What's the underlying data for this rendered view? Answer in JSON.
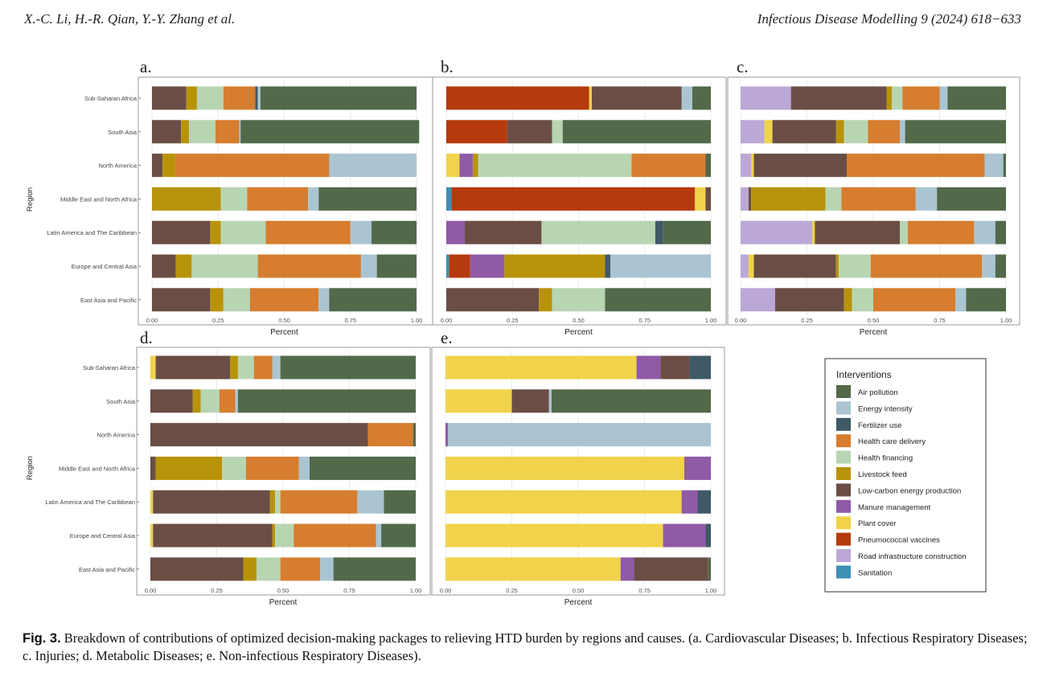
{
  "header": {
    "authors": "X.-C. Li, H.-R. Qian, Y.-Y. Zhang et al.",
    "journal": "Infectious Disease Modelling 9 (2024) 618−633"
  },
  "caption": {
    "label": "Fig. 3.",
    "text": "Breakdown of contributions of optimized decision-making packages to relieving HTD burden by regions and causes. (a. Cardiovascular Diseases; b. Infectious Respiratory Diseases; c. Injuries; d. Metabolic Diseases; e. Non-infectious Respiratory Diseases)."
  },
  "legend": {
    "title": "Interventions",
    "items": [
      {
        "label": "Air pollution",
        "color": "#52694a"
      },
      {
        "label": "Energy intensity",
        "color": "#aac5d1"
      },
      {
        "label": "Fertilizer use",
        "color": "#3f5966"
      },
      {
        "label": "Health care delivery",
        "color": "#d67d2f"
      },
      {
        "label": "Health financing",
        "color": "#b8d5b2"
      },
      {
        "label": "Livestock feed",
        "color": "#b8930a"
      },
      {
        "label": "Low-carbon energy production",
        "color": "#6a4e45"
      },
      {
        "label": "Manure management",
        "color": "#8f5aa6"
      },
      {
        "label": "Plant cover",
        "color": "#f0d34a"
      },
      {
        "label": "Pneumococcal vaccines",
        "color": "#b53a0e"
      },
      {
        "label": "Road infrastructure construction",
        "color": "#bba8d6"
      },
      {
        "label": "Sanitation",
        "color": "#3d8fb4"
      }
    ]
  },
  "chart_data": [
    {
      "type": "bar",
      "panel": "a.",
      "orientation": "horizontal",
      "stacked": true,
      "xlabel": "Percent",
      "ylabel": "Region",
      "xticks": [
        "0.00",
        "0.25",
        "0.50",
        "0.75",
        "1.00"
      ],
      "xlim": [
        0,
        1
      ],
      "categories": [
        "Sub-Saharan Africa",
        "South Asia",
        "North America",
        "Middle East and North Africa",
        "Latin America and The Caribbean",
        "Europe and Central Asia",
        "East Asia and Pacific"
      ],
      "rows": [
        [
          [
            "Low-carbon energy production",
            0.13
          ],
          [
            "Livestock feed",
            0.04
          ],
          [
            "Health financing",
            0.1
          ],
          [
            "Health care delivery",
            0.12
          ],
          [
            "Fertilizer use",
            0.01
          ],
          [
            "Energy intensity",
            0.01
          ],
          [
            "Air pollution",
            0.59
          ]
        ],
        [
          [
            "Low-carbon energy production",
            0.11
          ],
          [
            "Livestock feed",
            0.03
          ],
          [
            "Health financing",
            0.1
          ],
          [
            "Health care delivery",
            0.09
          ],
          [
            "Energy intensity",
            0.005
          ],
          [
            "Air pollution",
            0.675
          ]
        ],
        [
          [
            "Low-carbon energy production",
            0.04
          ],
          [
            "Livestock feed",
            0.05
          ],
          [
            "Health care delivery",
            0.58
          ],
          [
            "Energy intensity",
            0.33
          ]
        ],
        [
          [
            "Livestock feed",
            0.26
          ],
          [
            "Health financing",
            0.1
          ],
          [
            "Health care delivery",
            0.23
          ],
          [
            "Energy intensity",
            0.04
          ],
          [
            "Air pollution",
            0.37
          ]
        ],
        [
          [
            "Low-carbon energy production",
            0.22
          ],
          [
            "Livestock feed",
            0.04
          ],
          [
            "Health financing",
            0.17
          ],
          [
            "Health care delivery",
            0.32
          ],
          [
            "Energy intensity",
            0.08
          ],
          [
            "Air pollution",
            0.17
          ]
        ],
        [
          [
            "Low-carbon energy production",
            0.09
          ],
          [
            "Livestock feed",
            0.06
          ],
          [
            "Health financing",
            0.25
          ],
          [
            "Health care delivery",
            0.39
          ],
          [
            "Energy intensity",
            0.06
          ],
          [
            "Air pollution",
            0.15
          ]
        ],
        [
          [
            "Low-carbon energy production",
            0.22
          ],
          [
            "Livestock feed",
            0.05
          ],
          [
            "Health financing",
            0.1
          ],
          [
            "Health care delivery",
            0.26
          ],
          [
            "Energy intensity",
            0.04
          ],
          [
            "Air pollution",
            0.33
          ]
        ]
      ]
    },
    {
      "type": "bar",
      "panel": "b.",
      "orientation": "horizontal",
      "stacked": true,
      "xlabel": "Percent",
      "ylabel": "",
      "xticks": [
        "0.00",
        "0.25",
        "0.50",
        "0.75",
        "1.00"
      ],
      "xlim": [
        0,
        1
      ],
      "categories": [
        "Sub-Saharan Africa",
        "South Asia",
        "North America",
        "Middle East and North Africa",
        "Latin America and The Caribbean",
        "Europe and Central Asia",
        "East Asia and Pacific"
      ],
      "rows": [
        [
          [
            "Pneumococcal vaccines",
            0.54
          ],
          [
            "Plant cover",
            0.01
          ],
          [
            "Low-carbon energy production",
            0.34
          ],
          [
            "Energy intensity",
            0.04
          ],
          [
            "Air pollution",
            0.07
          ]
        ],
        [
          [
            "Pneumococcal vaccines",
            0.23
          ],
          [
            "Low-carbon energy production",
            0.17
          ],
          [
            "Health financing",
            0.04
          ],
          [
            "Air pollution",
            0.56
          ]
        ],
        [
          [
            "Plant cover",
            0.05
          ],
          [
            "Manure management",
            0.05
          ],
          [
            "Livestock feed",
            0.02
          ],
          [
            "Health financing",
            0.58
          ],
          [
            "Health care delivery",
            0.28
          ],
          [
            "Air pollution",
            0.02
          ]
        ],
        [
          [
            "Sanitation",
            0.02
          ],
          [
            "Pneumococcal vaccines",
            0.92
          ],
          [
            "Plant cover",
            0.04
          ],
          [
            "Low-carbon energy production",
            0.02
          ]
        ],
        [
          [
            "Manure management",
            0.07
          ],
          [
            "Low-carbon energy production",
            0.29
          ],
          [
            "Health financing",
            0.43
          ],
          [
            "Fertilizer use",
            0.03
          ],
          [
            "Air pollution",
            0.18
          ]
        ],
        [
          [
            "Sanitation",
            0.01
          ],
          [
            "Pneumococcal vaccines",
            0.08
          ],
          [
            "Manure management",
            0.13
          ],
          [
            "Livestock feed",
            0.38
          ],
          [
            "Fertilizer use",
            0.02
          ],
          [
            "Energy intensity",
            0.38
          ]
        ],
        [
          [
            "Low-carbon energy production",
            0.35
          ],
          [
            "Livestock feed",
            0.05
          ],
          [
            "Health financing",
            0.2
          ],
          [
            "Air pollution",
            0.4
          ]
        ]
      ]
    },
    {
      "type": "bar",
      "panel": "c.",
      "orientation": "horizontal",
      "stacked": true,
      "xlabel": "Percent",
      "ylabel": "",
      "xticks": [
        "0.00",
        "0.25",
        "0.50",
        "0.75",
        "1.00"
      ],
      "xlim": [
        0,
        1
      ],
      "categories": [
        "Sub-Saharan Africa",
        "South Asia",
        "North America",
        "Middle East and North Africa",
        "Latin America and The Caribbean",
        "Europe and Central Asia",
        "East Asia and Pacific"
      ],
      "rows": [
        [
          [
            "Road infrastructure construction",
            0.19
          ],
          [
            "Low-carbon energy production",
            0.36
          ],
          [
            "Livestock feed",
            0.02
          ],
          [
            "Health financing",
            0.04
          ],
          [
            "Health care delivery",
            0.14
          ],
          [
            "Energy intensity",
            0.03
          ],
          [
            "Air pollution",
            0.22
          ]
        ],
        [
          [
            "Road infrastructure construction",
            0.09
          ],
          [
            "Plant cover",
            0.03
          ],
          [
            "Low-carbon energy production",
            0.24
          ],
          [
            "Livestock feed",
            0.03
          ],
          [
            "Health financing",
            0.09
          ],
          [
            "Health care delivery",
            0.12
          ],
          [
            "Energy intensity",
            0.02
          ],
          [
            "Air pollution",
            0.38
          ]
        ],
        [
          [
            "Road infrastructure construction",
            0.04
          ],
          [
            "Plant cover",
            0.01
          ],
          [
            "Low-carbon energy production",
            0.35
          ],
          [
            "Health care delivery",
            0.52
          ],
          [
            "Energy intensity",
            0.07
          ],
          [
            "Air pollution",
            0.01
          ]
        ],
        [
          [
            "Road infrastructure construction",
            0.03
          ],
          [
            "Low-carbon energy production",
            0.01
          ],
          [
            "Livestock feed",
            0.28
          ],
          [
            "Health financing",
            0.06
          ],
          [
            "Health care delivery",
            0.28
          ],
          [
            "Energy intensity",
            0.08
          ],
          [
            "Air pollution",
            0.26
          ]
        ],
        [
          [
            "Road infrastructure construction",
            0.27
          ],
          [
            "Plant cover",
            0.01
          ],
          [
            "Low-carbon energy production",
            0.32
          ],
          [
            "Health financing",
            0.03
          ],
          [
            "Health care delivery",
            0.25
          ],
          [
            "Energy intensity",
            0.08
          ],
          [
            "Air pollution",
            0.04
          ]
        ],
        [
          [
            "Road infrastructure construction",
            0.03
          ],
          [
            "Plant cover",
            0.02
          ],
          [
            "Low-carbon energy production",
            0.31
          ],
          [
            "Livestock feed",
            0.01
          ],
          [
            "Health financing",
            0.12
          ],
          [
            "Health care delivery",
            0.42
          ],
          [
            "Energy intensity",
            0.05
          ],
          [
            "Air pollution",
            0.04
          ]
        ],
        [
          [
            "Road infrastructure construction",
            0.13
          ],
          [
            "Low-carbon energy production",
            0.26
          ],
          [
            "Livestock feed",
            0.03
          ],
          [
            "Health financing",
            0.08
          ],
          [
            "Health care delivery",
            0.31
          ],
          [
            "Energy intensity",
            0.04
          ],
          [
            "Air pollution",
            0.15
          ]
        ]
      ]
    },
    {
      "type": "bar",
      "panel": "d.",
      "orientation": "horizontal",
      "stacked": true,
      "xlabel": "Percent",
      "ylabel": "Region",
      "xticks": [
        "0.00",
        "0.25",
        "0.50",
        "0.75",
        "1.00"
      ],
      "xlim": [
        0,
        1
      ],
      "categories": [
        "Sub-Saharan Africa",
        "South Asia",
        "North America",
        "Middle East and North Africa",
        "Latin America and The Caribbean",
        "Europe and Central Asia",
        "East Asia and Pacific"
      ],
      "rows": [
        [
          [
            "Plant cover",
            0.02
          ],
          [
            "Low-carbon energy production",
            0.28
          ],
          [
            "Livestock feed",
            0.03
          ],
          [
            "Health financing",
            0.06
          ],
          [
            "Health care delivery",
            0.07
          ],
          [
            "Energy intensity",
            0.03
          ],
          [
            "Air pollution",
            0.51
          ]
        ],
        [
          [
            "Low-carbon energy production",
            0.16
          ],
          [
            "Livestock feed",
            0.03
          ],
          [
            "Health financing",
            0.07
          ],
          [
            "Health care delivery",
            0.06
          ],
          [
            "Energy intensity",
            0.01
          ],
          [
            "Air pollution",
            0.67
          ]
        ],
        [
          [
            "Low-carbon energy production",
            0.82
          ],
          [
            "Health care delivery",
            0.17
          ],
          [
            "Air pollution",
            0.01
          ]
        ],
        [
          [
            "Low-carbon energy production",
            0.02
          ],
          [
            "Livestock feed",
            0.25
          ],
          [
            "Health financing",
            0.09
          ],
          [
            "Health care delivery",
            0.2
          ],
          [
            "Energy intensity",
            0.04
          ],
          [
            "Air pollution",
            0.4
          ]
        ],
        [
          [
            "Plant cover",
            0.01
          ],
          [
            "Low-carbon energy production",
            0.44
          ],
          [
            "Livestock feed",
            0.02
          ],
          [
            "Health financing",
            0.02
          ],
          [
            "Health care delivery",
            0.29
          ],
          [
            "Energy intensity",
            0.1
          ],
          [
            "Air pollution",
            0.12
          ]
        ],
        [
          [
            "Plant cover",
            0.01
          ],
          [
            "Low-carbon energy production",
            0.45
          ],
          [
            "Livestock feed",
            0.01
          ],
          [
            "Health financing",
            0.07
          ],
          [
            "Health care delivery",
            0.31
          ],
          [
            "Energy intensity",
            0.02
          ],
          [
            "Air pollution",
            0.13
          ]
        ],
        [
          [
            "Low-carbon energy production",
            0.35
          ],
          [
            "Livestock feed",
            0.05
          ],
          [
            "Health financing",
            0.09
          ],
          [
            "Health care delivery",
            0.15
          ],
          [
            "Energy intensity",
            0.05
          ],
          [
            "Air pollution",
            0.31
          ]
        ]
      ]
    },
    {
      "type": "bar",
      "panel": "e.",
      "orientation": "horizontal",
      "stacked": true,
      "xlabel": "Percent",
      "ylabel": "",
      "xticks": [
        "0.00",
        "0.25",
        "0.50",
        "0.75",
        "1.00"
      ],
      "xlim": [
        0,
        1
      ],
      "categories": [
        "Sub-Saharan Africa",
        "South Asia",
        "North America",
        "Middle East and North Africa",
        "Latin America and The Caribbean",
        "Europe and Central Asia",
        "East Asia and Pacific"
      ],
      "rows": [
        [
          [
            "Plant cover",
            0.72
          ],
          [
            "Manure management",
            0.09
          ],
          [
            "Low-carbon energy production",
            0.11
          ],
          [
            "Fertilizer use",
            0.08
          ]
        ],
        [
          [
            "Plant cover",
            0.25
          ],
          [
            "Low-carbon energy production",
            0.14
          ],
          [
            "Energy intensity",
            0.01
          ],
          [
            "Air pollution",
            0.6
          ]
        ],
        [
          [
            "Manure management",
            0.01
          ],
          [
            "Energy intensity",
            0.99
          ]
        ],
        [
          [
            "Plant cover",
            0.9
          ],
          [
            "Manure management",
            0.1
          ]
        ],
        [
          [
            "Plant cover",
            0.89
          ],
          [
            "Manure management",
            0.06
          ],
          [
            "Fertilizer use",
            0.05
          ]
        ],
        [
          [
            "Plant cover",
            0.82
          ],
          [
            "Manure management",
            0.16
          ],
          [
            "Fertilizer use",
            0.02
          ]
        ],
        [
          [
            "Plant cover",
            0.66
          ],
          [
            "Manure management",
            0.05
          ],
          [
            "Low-carbon energy production",
            0.28
          ],
          [
            "Air pollution",
            0.01
          ]
        ]
      ]
    }
  ]
}
